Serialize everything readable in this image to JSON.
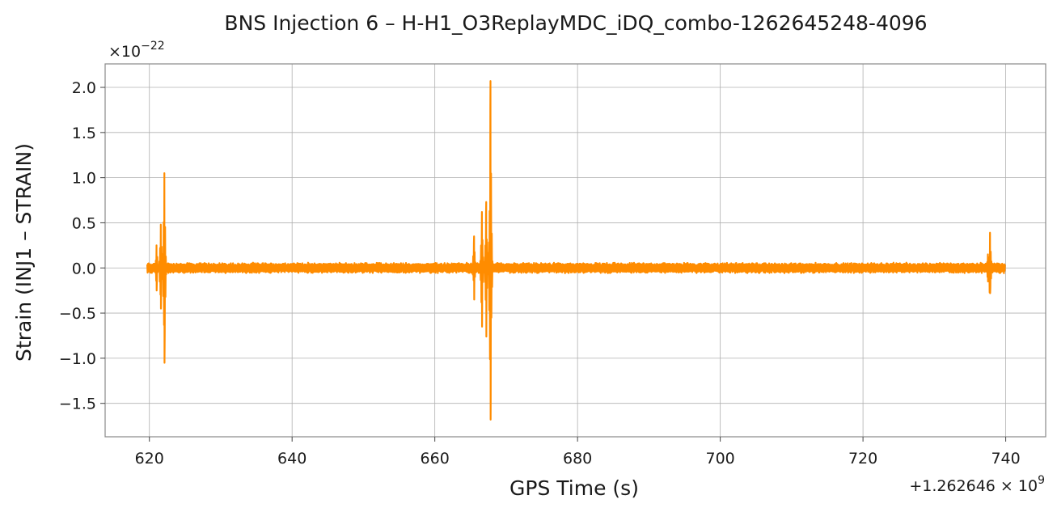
{
  "chart_data": {
    "type": "line",
    "title": "BNS Injection 6 – H-H1_O3ReplayMDC_iDQ_combo-1262645248-4096",
    "xlabel": "GPS Time (s)",
    "ylabel": "Strain (INJ1 – STRAIN)",
    "y_multiplier_label": {
      "base": "×10",
      "exponent": "−22"
    },
    "x_offset_label": {
      "base": "+1.262646 × 10",
      "exponent": "9"
    },
    "xlim": [
      613.8,
      745.6
    ],
    "ylim": [
      -1.87,
      2.26
    ],
    "x_ticks": [
      620,
      640,
      660,
      680,
      700,
      720,
      740
    ],
    "x_tick_labels": [
      "620",
      "640",
      "660",
      "680",
      "700",
      "720",
      "740"
    ],
    "y_ticks": [
      -1.5,
      -1.0,
      -0.5,
      0.0,
      0.5,
      1.0,
      1.5,
      2.0
    ],
    "y_tick_labels": [
      "−1.5",
      "−1.0",
      "−0.5",
      "0.0",
      "0.5",
      "1.0",
      "1.5",
      "2.0"
    ],
    "grid": true,
    "line_color": "#ff8c00",
    "series": [
      {
        "x_start": 619.7,
        "x_end": 739.9,
        "noise_amplitude": 0.05,
        "events": [
          {
            "x": 621.0,
            "y_max": 0.25,
            "y_min": -0.25
          },
          {
            "x": 621.6,
            "y_max": 0.48,
            "y_min": -0.45
          },
          {
            "x": 622.1,
            "y_max": 1.05,
            "y_min": -1.05
          },
          {
            "x": 665.5,
            "y_max": 0.35,
            "y_min": -0.35
          },
          {
            "x": 666.6,
            "y_max": 0.62,
            "y_min": -0.65
          },
          {
            "x": 667.2,
            "y_max": 0.73,
            "y_min": -0.76
          },
          {
            "x": 667.8,
            "y_max": 2.07,
            "y_min": -1.68
          },
          {
            "x": 737.5,
            "y_max": 0.15,
            "y_min": -0.15
          },
          {
            "x": 737.8,
            "y_max": 0.39,
            "y_min": -0.28
          }
        ]
      }
    ]
  }
}
